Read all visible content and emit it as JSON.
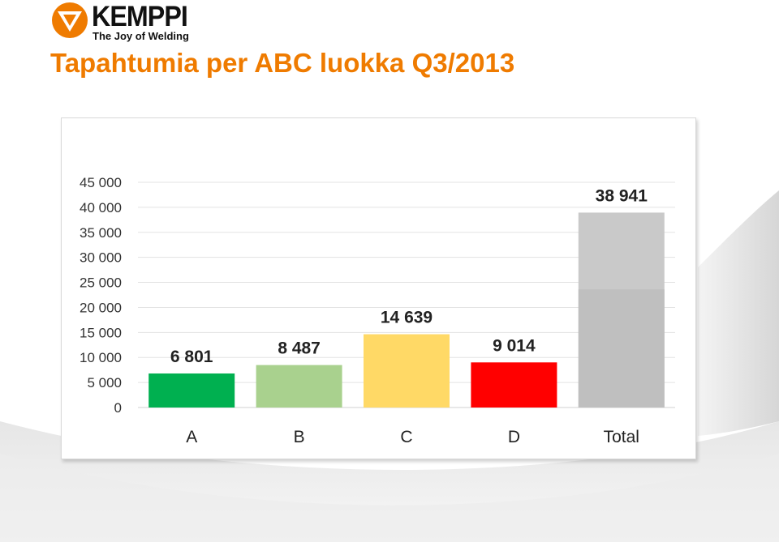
{
  "brand": {
    "name": "KEMPPI",
    "tagline": "The Joy of Welding",
    "color": "#ef7b00"
  },
  "page": {
    "title": "Tapahtumia per ABC luokka Q3/2013"
  },
  "chart_data": {
    "type": "bar",
    "categories": [
      "A",
      "B",
      "C",
      "D",
      "Total"
    ],
    "values": [
      6801,
      8487,
      14639,
      9014,
      38941
    ],
    "value_labels": [
      "6 801",
      "8 487",
      "14 639",
      "9 014",
      "38 941"
    ],
    "colors": [
      "#00b050",
      "#a9d18e",
      "#ffd966",
      "#ff0000",
      "#c9c9c9"
    ],
    "total_lower_shade": "#bfbfbf",
    "total_lower_value": 23600,
    "ylim": [
      0,
      45000
    ],
    "yticks": [
      0,
      5000,
      10000,
      15000,
      20000,
      25000,
      30000,
      35000,
      40000,
      45000
    ],
    "ytick_labels": [
      "0",
      "5 000",
      "10 000",
      "15 000",
      "20 000",
      "25 000",
      "30 000",
      "35 000",
      "40 000",
      "45 000"
    ],
    "grid": true,
    "legend": "none",
    "title": "",
    "xlabel": "",
    "ylabel": ""
  }
}
